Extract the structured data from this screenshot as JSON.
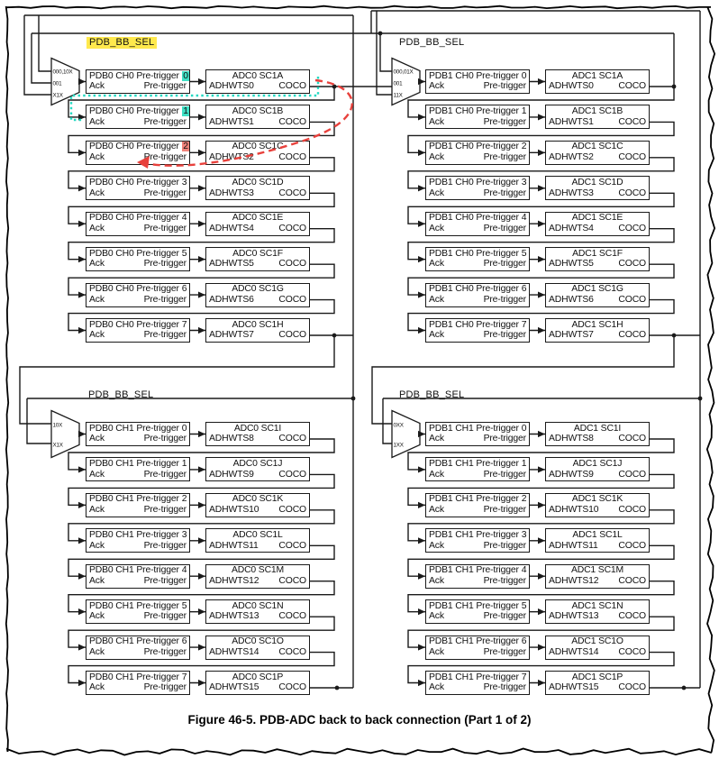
{
  "figure": {
    "caption": "Figure 46-5. PDB-ADC back to back connection (Part 1 of 2)"
  },
  "shared": {
    "bb_sel": "PDB_BB_SEL",
    "ack": "Ack",
    "pretrigger": "Pre-trigger",
    "coco": "COCO"
  },
  "colors": {
    "highlight_teal": "#3FE0C5",
    "highlight_red": "#F2837B",
    "highlight_yellow": "#FFE94D",
    "annotation_red": "#E8413C",
    "annotation_teal": "#25D9C2",
    "line": "#1a1a1a"
  },
  "quadrants": [
    {
      "id": "pdb0-ch0-adc0",
      "bb_sel_highlight": true,
      "mux_options": [
        "000,10X",
        "001",
        "X1X"
      ],
      "rows": [
        {
          "pdb": "PDB0 CH0 Pre-trigger",
          "n": "0",
          "hl": "teal",
          "adc": "ADC0 SC1A",
          "hw": "ADHWTS0"
        },
        {
          "pdb": "PDB0 CH0 Pre-trigger",
          "n": "1",
          "hl": "teal",
          "adc": "ADC0 SC1B",
          "hw": "ADHWTS1"
        },
        {
          "pdb": "PDB0 CH0 Pre-trigger",
          "n": "2",
          "hl": "red",
          "adc": "ADC0 SC1C",
          "hw": "ADHWTS2"
        },
        {
          "pdb": "PDB0 CH0 Pre-trigger",
          "n": "3",
          "hl": null,
          "adc": "ADC0 SC1D",
          "hw": "ADHWTS3"
        },
        {
          "pdb": "PDB0 CH0 Pre-trigger",
          "n": "4",
          "hl": null,
          "adc": "ADC0 SC1E",
          "hw": "ADHWTS4"
        },
        {
          "pdb": "PDB0 CH0 Pre-trigger",
          "n": "5",
          "hl": null,
          "adc": "ADC0 SC1F",
          "hw": "ADHWTS5"
        },
        {
          "pdb": "PDB0 CH0 Pre-trigger",
          "n": "6",
          "hl": null,
          "adc": "ADC0 SC1G",
          "hw": "ADHWTS6"
        },
        {
          "pdb": "PDB0 CH0 Pre-trigger",
          "n": "7",
          "hl": null,
          "adc": "ADC0 SC1H",
          "hw": "ADHWTS7"
        }
      ]
    },
    {
      "id": "pdb1-ch0-adc1",
      "bb_sel_highlight": false,
      "mux_options": [
        "000,01X",
        "001",
        "11X"
      ],
      "rows": [
        {
          "pdb": "PDB1 CH0 Pre-trigger",
          "n": "0",
          "hl": null,
          "adc": "ADC1 SC1A",
          "hw": "ADHWTS0"
        },
        {
          "pdb": "PDB1 CH0 Pre-trigger",
          "n": "1",
          "hl": null,
          "adc": "ADC1 SC1B",
          "hw": "ADHWTS1"
        },
        {
          "pdb": "PDB1 CH0 Pre-trigger",
          "n": "2",
          "hl": null,
          "adc": "ADC1 SC1C",
          "hw": "ADHWTS2"
        },
        {
          "pdb": "PDB1 CH0 Pre-trigger",
          "n": "3",
          "hl": null,
          "adc": "ADC1 SC1D",
          "hw": "ADHWTS3"
        },
        {
          "pdb": "PDB1 CH0 Pre-trigger",
          "n": "4",
          "hl": null,
          "adc": "ADC1 SC1E",
          "hw": "ADHWTS4"
        },
        {
          "pdb": "PDB1 CH0 Pre-trigger",
          "n": "5",
          "hl": null,
          "adc": "ADC1 SC1F",
          "hw": "ADHWTS5"
        },
        {
          "pdb": "PDB1 CH0 Pre-trigger",
          "n": "6",
          "hl": null,
          "adc": "ADC1 SC1G",
          "hw": "ADHWTS6"
        },
        {
          "pdb": "PDB1 CH0 Pre-trigger",
          "n": "7",
          "hl": null,
          "adc": "ADC1 SC1H",
          "hw": "ADHWTS7"
        }
      ]
    },
    {
      "id": "pdb0-ch1-adc0",
      "bb_sel_highlight": false,
      "mux_options": [
        "10X",
        "X1X"
      ],
      "rows": [
        {
          "pdb": "PDB0 CH1 Pre-trigger",
          "n": "0",
          "hl": null,
          "adc": "ADC0 SC1I",
          "hw": "ADHWTS8"
        },
        {
          "pdb": "PDB0 CH1 Pre-trigger",
          "n": "1",
          "hl": null,
          "adc": "ADC0 SC1J",
          "hw": "ADHWTS9"
        },
        {
          "pdb": "PDB0 CH1 Pre-trigger",
          "n": "2",
          "hl": null,
          "adc": "ADC0 SC1K",
          "hw": "ADHWTS10"
        },
        {
          "pdb": "PDB0 CH1 Pre-trigger",
          "n": "3",
          "hl": null,
          "adc": "ADC0 SC1L",
          "hw": "ADHWTS11"
        },
        {
          "pdb": "PDB0 CH1 Pre-trigger",
          "n": "4",
          "hl": null,
          "adc": "ADC0 SC1M",
          "hw": "ADHWTS12"
        },
        {
          "pdb": "PDB0 CH1 Pre-trigger",
          "n": "5",
          "hl": null,
          "adc": "ADC0 SC1N",
          "hw": "ADHWTS13"
        },
        {
          "pdb": "PDB0 CH1 Pre-trigger",
          "n": "6",
          "hl": null,
          "adc": "ADC0 SC1O",
          "hw": "ADHWTS14"
        },
        {
          "pdb": "PDB0 CH1 Pre-trigger",
          "n": "7",
          "hl": null,
          "adc": "ADC0 SC1P",
          "hw": "ADHWTS15"
        }
      ]
    },
    {
      "id": "pdb1-ch1-adc1",
      "bb_sel_highlight": false,
      "mux_options": [
        "0XX",
        "1XX"
      ],
      "rows": [
        {
          "pdb": "PDB1 CH1 Pre-trigger",
          "n": "0",
          "hl": null,
          "adc": "ADC1 SC1I",
          "hw": "ADHWTS8"
        },
        {
          "pdb": "PDB1 CH1 Pre-trigger",
          "n": "1",
          "hl": null,
          "adc": "ADC1 SC1J",
          "hw": "ADHWTS9"
        },
        {
          "pdb": "PDB1 CH1 Pre-trigger",
          "n": "2",
          "hl": null,
          "adc": "ADC1 SC1K",
          "hw": "ADHWTS10"
        },
        {
          "pdb": "PDB1 CH1 Pre-trigger",
          "n": "3",
          "hl": null,
          "adc": "ADC1 SC1L",
          "hw": "ADHWTS11"
        },
        {
          "pdb": "PDB1 CH1 Pre-trigger",
          "n": "4",
          "hl": null,
          "adc": "ADC1 SC1M",
          "hw": "ADHWTS12"
        },
        {
          "pdb": "PDB1 CH1 Pre-trigger",
          "n": "5",
          "hl": null,
          "adc": "ADC1 SC1N",
          "hw": "ADHWTS13"
        },
        {
          "pdb": "PDB1 CH1 Pre-trigger",
          "n": "6",
          "hl": null,
          "adc": "ADC1 SC1O",
          "hw": "ADHWTS14"
        },
        {
          "pdb": "PDB1 CH1 Pre-trigger",
          "n": "7",
          "hl": null,
          "adc": "ADC1 SC1P",
          "hw": "ADHWTS15"
        }
      ]
    }
  ]
}
